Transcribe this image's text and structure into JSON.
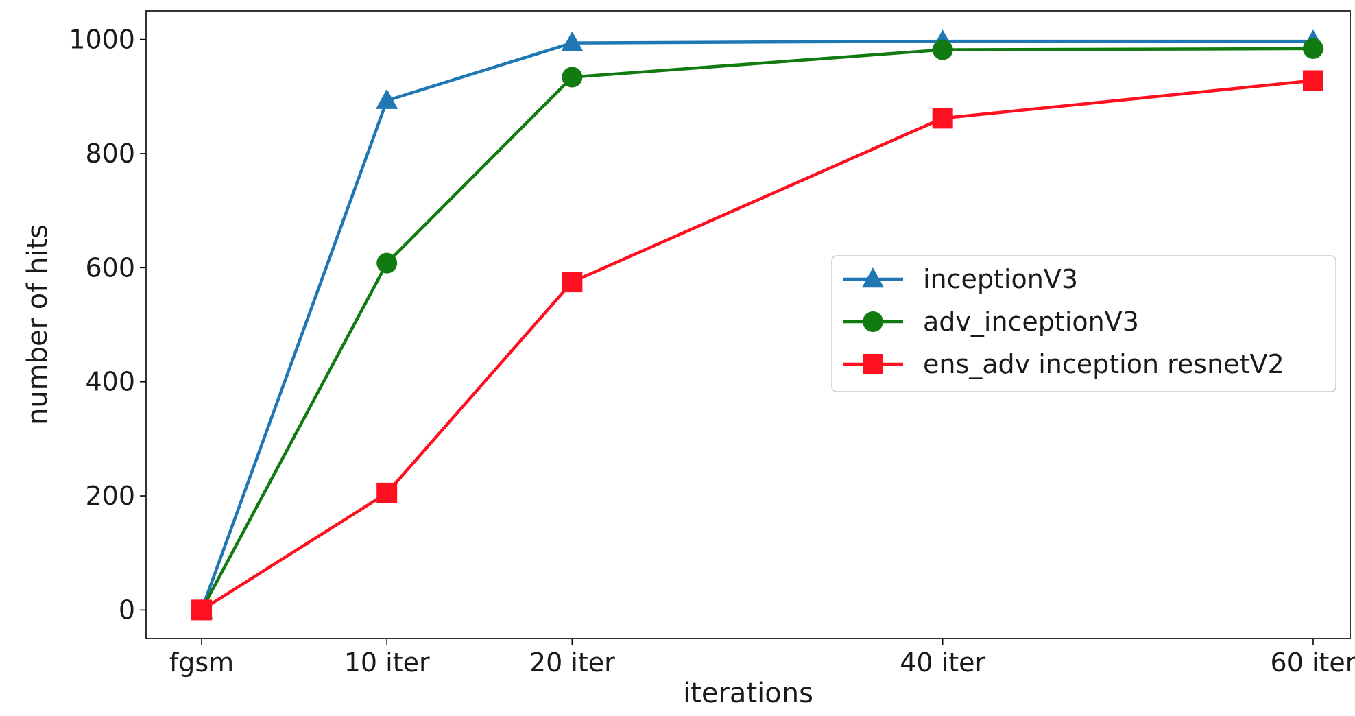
{
  "chart_data": {
    "type": "line",
    "title": "",
    "xlabel": "iterations",
    "ylabel": "number of hits",
    "categories": [
      "fgsm",
      "10 iter",
      "20 iter",
      "40 iter",
      "60 iter"
    ],
    "x": [
      0,
      10,
      20,
      40,
      60
    ],
    "xlim": [
      -3,
      62
    ],
    "ylim": [
      -50,
      1050
    ],
    "yticks": [
      0,
      200,
      400,
      600,
      800,
      1000
    ],
    "grid": false,
    "legend_position": "center-right",
    "series": [
      {
        "name": "inceptionV3",
        "marker": "triangle",
        "color": "#1f77b4",
        "values": [
          0,
          893,
          994,
          997,
          997
        ]
      },
      {
        "name": "adv_inceptionV3",
        "marker": "circle",
        "color": "#117a11",
        "values": [
          0,
          608,
          934,
          982,
          984
        ]
      },
      {
        "name": "ens_adv inception resnetV2",
        "marker": "square",
        "color": "#ff1020",
        "values": [
          0,
          205,
          575,
          862,
          928
        ]
      }
    ]
  }
}
